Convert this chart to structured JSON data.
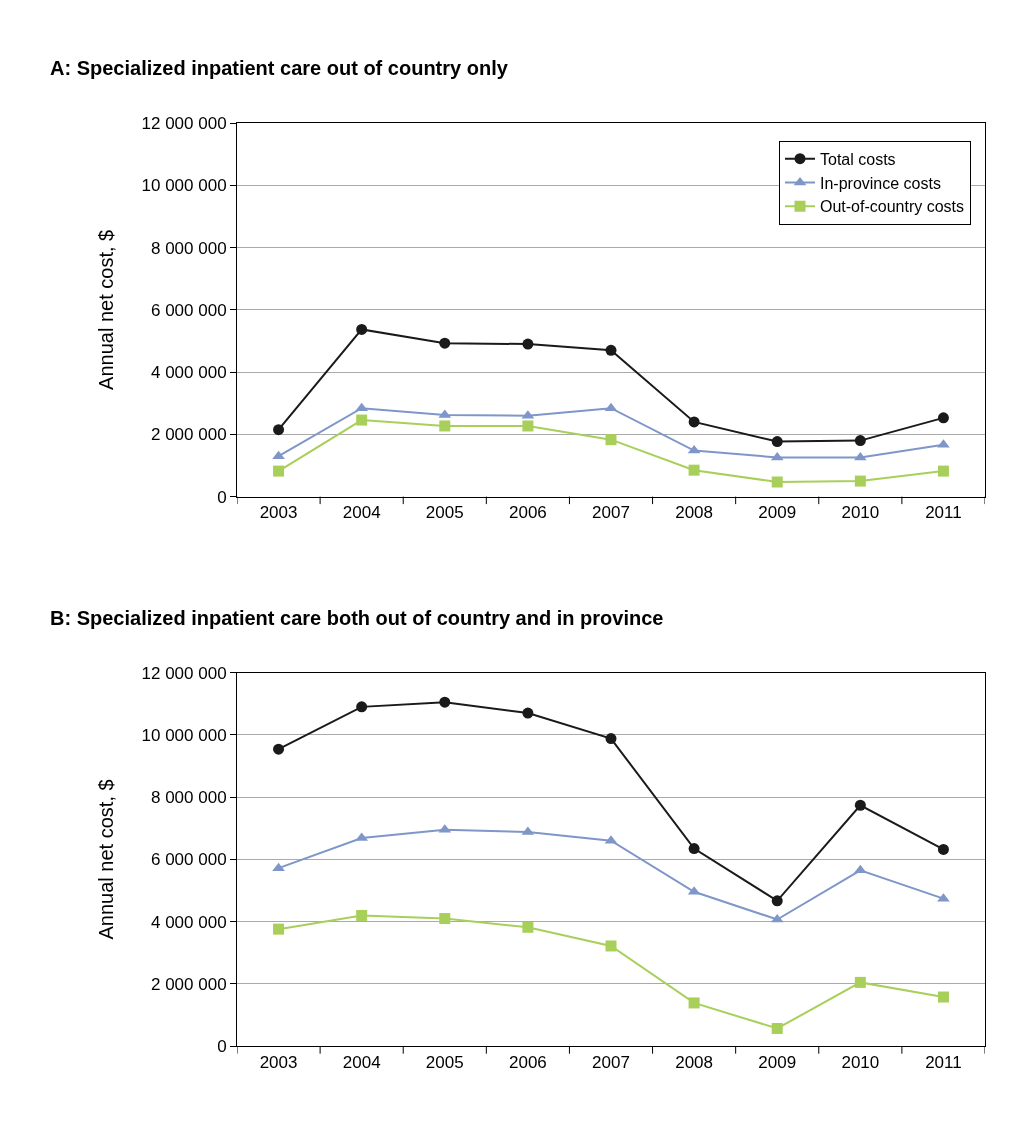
{
  "chart_data": [
    {
      "type": "line",
      "title": "A: Specialized inpatient care out of country only",
      "ylabel": "Annual net cost, $",
      "categories": [
        "2003",
        "2004",
        "2005",
        "2006",
        "2007",
        "2008",
        "2009",
        "2010",
        "2011"
      ],
      "series": [
        {
          "name": "Total costs",
          "color": "#1a1a1a",
          "marker": "circle",
          "values": [
            2150000,
            5370000,
            4930000,
            4900000,
            4700000,
            2400000,
            1770000,
            1800000,
            2530000
          ]
        },
        {
          "name": "In-province costs",
          "color": "#7f96c8",
          "marker": "triangle",
          "values": [
            1300000,
            2840000,
            2620000,
            2600000,
            2840000,
            1480000,
            1260000,
            1260000,
            1670000
          ]
        },
        {
          "name": "Out-of-country costs",
          "color": "#a8cf5a",
          "marker": "square",
          "values": [
            820000,
            2460000,
            2270000,
            2270000,
            1830000,
            850000,
            470000,
            500000,
            820000
          ]
        }
      ],
      "ylim": [
        0,
        12000000
      ],
      "yticks": [
        0,
        {
          "value": 2000000,
          "label": "2 000 000"
        },
        {
          "value": 4000000,
          "label": "4 000 000"
        },
        {
          "value": 6000000,
          "label": "6 000 000"
        },
        {
          "value": 8000000,
          "label": "8 000 000"
        },
        {
          "value": 10000000,
          "label": "10 000 000"
        },
        {
          "value": 12000000,
          "label": "12 000 000"
        }
      ],
      "grid": "y",
      "legend": "top right",
      "line_style": "solid"
    },
    {
      "type": "line",
      "title": "B: Specialized inpatient care both out of country and in province",
      "ylabel": "Annual net cost, $",
      "categories": [
        "2003",
        "2004",
        "2005",
        "2006",
        "2007",
        "2008",
        "2009",
        "2010",
        "2011"
      ],
      "series": [
        {
          "color": "#1a1a1a",
          "marker": "circle",
          "values": [
            9540000,
            10900000,
            11050000,
            10700000,
            9880000,
            6350000,
            4670000,
            7740000,
            6320000
          ]
        },
        {
          "color": "#7f96c8",
          "marker": "triangle",
          "values": [
            5720000,
            6690000,
            6950000,
            6880000,
            6600000,
            4960000,
            4070000,
            5650000,
            4740000
          ]
        },
        {
          "color": "#a8cf5a",
          "marker": "square",
          "values": [
            3760000,
            4200000,
            4100000,
            3820000,
            3220000,
            1390000,
            570000,
            2050000,
            1580000
          ]
        }
      ],
      "ylim": [
        0,
        12000000
      ],
      "yticks": [
        0,
        {
          "value": 2000000,
          "label": "2 000 000"
        },
        {
          "value": 4000000,
          "label": "4 000 000"
        },
        {
          "value": 6000000,
          "label": "6 000 000"
        },
        {
          "value": 8000000,
          "label": "8 000 000"
        },
        {
          "value": 10000000,
          "label": "10 000 000"
        },
        {
          "value": 12000000,
          "label": "12 000 000"
        }
      ],
      "grid": "y",
      "legend": false,
      "line_style": "solid"
    }
  ]
}
